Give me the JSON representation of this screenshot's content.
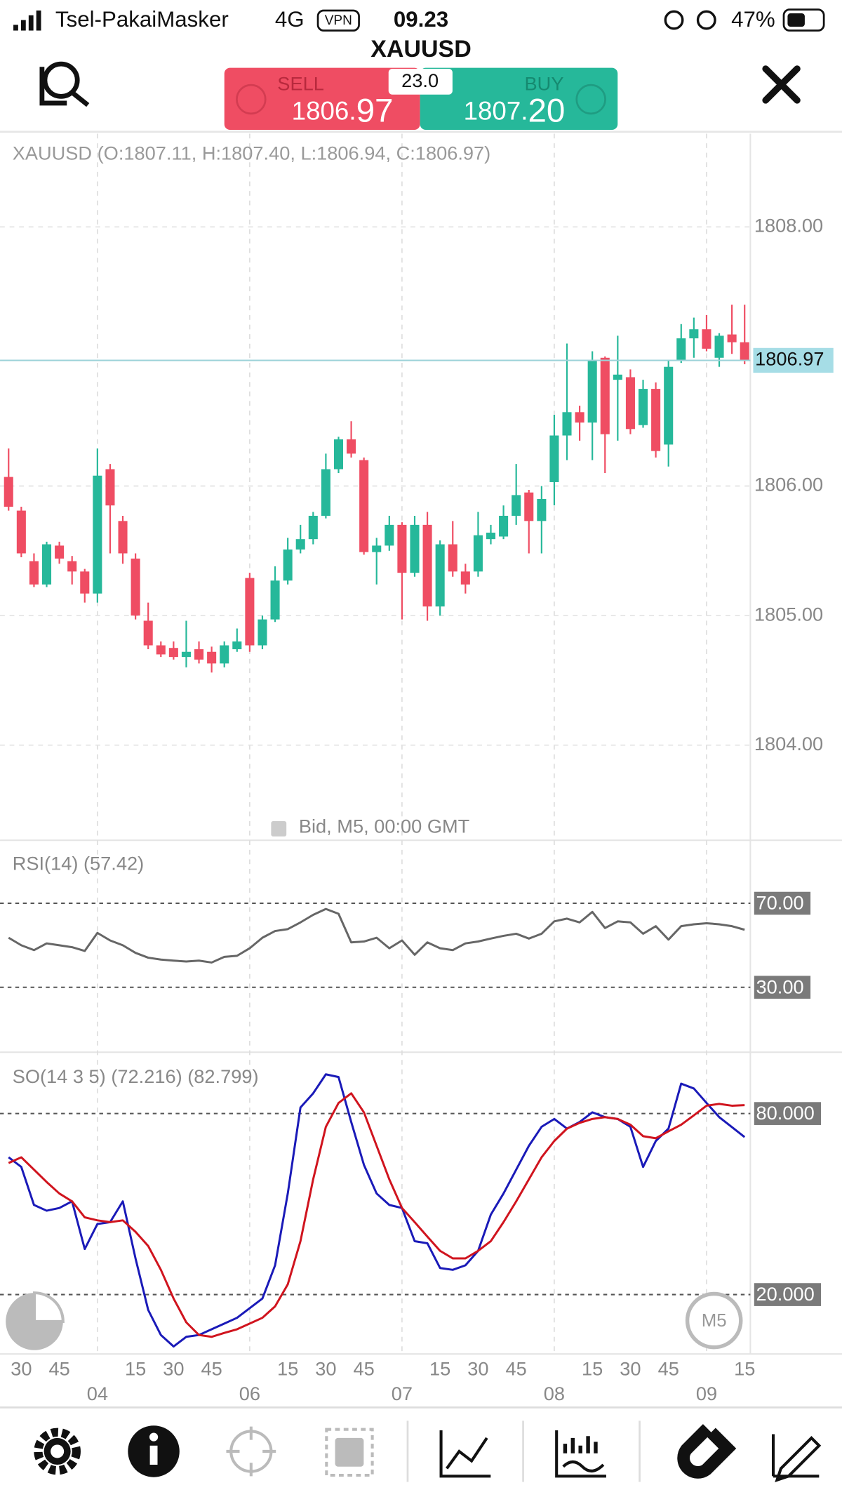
{
  "status_bar": {
    "carrier": "Tsel-PakaiMasker",
    "network": "4G",
    "vpn": "VPN",
    "time": "09.23",
    "battery": "47%"
  },
  "header": {
    "symbol": "XAUUSD",
    "sell_label": "SELL",
    "sell_price_main": "1806.",
    "sell_price_pips": "97",
    "buy_label": "BUY",
    "buy_price_main": "1807.",
    "buy_price_pips": "20",
    "spread": "23.0"
  },
  "price_chart": {
    "type": "candlestick",
    "info": "XAUUSD (O:1807.11, H:1807.40, L:1806.94, C:1806.97)",
    "footer": "Bid, M5, 00:00 GMT",
    "up_color": "#26b89a",
    "down_color": "#ef4d63",
    "ylim": [
      1803.28,
      1808.72
    ],
    "yticks": [
      {
        "value": 1804,
        "label": "1804.00"
      },
      {
        "value": 1805,
        "label": "1805.00"
      },
      {
        "value": 1806,
        "label": "1806.00"
      },
      {
        "value": 1808,
        "label": "1808.00"
      }
    ],
    "current_price": {
      "value": 1806.97,
      "label": "1806.97"
    },
    "candles": [
      {
        "open": 1806.07,
        "high": 1806.29,
        "low": 1805.81,
        "close": 1805.84
      },
      {
        "open": 1805.81,
        "high": 1805.84,
        "low": 1805.45,
        "close": 1805.48
      },
      {
        "open": 1805.42,
        "high": 1805.48,
        "low": 1805.22,
        "close": 1805.24
      },
      {
        "open": 1805.24,
        "high": 1805.57,
        "low": 1805.22,
        "close": 1805.55
      },
      {
        "open": 1805.54,
        "high": 1805.57,
        "low": 1805.4,
        "close": 1805.44
      },
      {
        "open": 1805.42,
        "high": 1805.46,
        "low": 1805.24,
        "close": 1805.34
      },
      {
        "open": 1805.34,
        "high": 1805.36,
        "low": 1805.1,
        "close": 1805.17
      },
      {
        "open": 1805.17,
        "high": 1806.29,
        "low": 1805.1,
        "close": 1806.08
      },
      {
        "open": 1806.13,
        "high": 1806.17,
        "low": 1805.48,
        "close": 1805.85
      },
      {
        "open": 1805.73,
        "high": 1805.77,
        "low": 1805.4,
        "close": 1805.48
      },
      {
        "open": 1805.44,
        "high": 1805.48,
        "low": 1804.97,
        "close": 1805.0
      },
      {
        "open": 1804.96,
        "high": 1805.1,
        "low": 1804.74,
        "close": 1804.77
      },
      {
        "open": 1804.77,
        "high": 1804.8,
        "low": 1804.68,
        "close": 1804.7
      },
      {
        "open": 1804.75,
        "high": 1804.8,
        "low": 1804.66,
        "close": 1804.68
      },
      {
        "open": 1804.68,
        "high": 1804.96,
        "low": 1804.6,
        "close": 1804.72
      },
      {
        "open": 1804.74,
        "high": 1804.8,
        "low": 1804.63,
        "close": 1804.66
      },
      {
        "open": 1804.72,
        "high": 1804.76,
        "low": 1804.56,
        "close": 1804.63
      },
      {
        "open": 1804.63,
        "high": 1804.8,
        "low": 1804.6,
        "close": 1804.77
      },
      {
        "open": 1804.74,
        "high": 1804.9,
        "low": 1804.72,
        "close": 1804.8
      },
      {
        "open": 1805.29,
        "high": 1805.33,
        "low": 1804.72,
        "close": 1804.77
      },
      {
        "open": 1804.77,
        "high": 1805.0,
        "low": 1804.74,
        "close": 1804.97
      },
      {
        "open": 1804.97,
        "high": 1805.38,
        "low": 1804.95,
        "close": 1805.27
      },
      {
        "open": 1805.27,
        "high": 1805.6,
        "low": 1805.24,
        "close": 1805.51
      },
      {
        "open": 1805.51,
        "high": 1805.7,
        "low": 1805.48,
        "close": 1805.59
      },
      {
        "open": 1805.59,
        "high": 1805.8,
        "low": 1805.55,
        "close": 1805.77
      },
      {
        "open": 1805.77,
        "high": 1806.25,
        "low": 1805.75,
        "close": 1806.13
      },
      {
        "open": 1806.13,
        "high": 1806.38,
        "low": 1806.1,
        "close": 1806.36
      },
      {
        "open": 1806.36,
        "high": 1806.5,
        "low": 1806.22,
        "close": 1806.25
      },
      {
        "open": 1806.2,
        "high": 1806.22,
        "low": 1805.47,
        "close": 1805.49
      },
      {
        "open": 1805.49,
        "high": 1805.6,
        "low": 1805.24,
        "close": 1805.54
      },
      {
        "open": 1805.54,
        "high": 1805.77,
        "low": 1805.5,
        "close": 1805.7
      },
      {
        "open": 1805.7,
        "high": 1805.72,
        "low": 1804.97,
        "close": 1805.33
      },
      {
        "open": 1805.33,
        "high": 1805.77,
        "low": 1805.3,
        "close": 1805.7
      },
      {
        "open": 1805.7,
        "high": 1805.8,
        "low": 1804.96,
        "close": 1805.07
      },
      {
        "open": 1805.07,
        "high": 1805.58,
        "low": 1805.0,
        "close": 1805.55
      },
      {
        "open": 1805.55,
        "high": 1805.73,
        "low": 1805.3,
        "close": 1805.34
      },
      {
        "open": 1805.34,
        "high": 1805.4,
        "low": 1805.17,
        "close": 1805.24
      },
      {
        "open": 1805.34,
        "high": 1805.8,
        "low": 1805.3,
        "close": 1805.62
      },
      {
        "open": 1805.59,
        "high": 1805.7,
        "low": 1805.55,
        "close": 1805.64
      },
      {
        "open": 1805.61,
        "high": 1805.85,
        "low": 1805.59,
        "close": 1805.77
      },
      {
        "open": 1805.77,
        "high": 1806.17,
        "low": 1805.7,
        "close": 1805.93
      },
      {
        "open": 1805.95,
        "high": 1805.97,
        "low": 1805.48,
        "close": 1805.73
      },
      {
        "open": 1805.73,
        "high": 1806.0,
        "low": 1805.48,
        "close": 1805.9
      },
      {
        "open": 1806.03,
        "high": 1806.55,
        "low": 1805.85,
        "close": 1806.39
      },
      {
        "open": 1806.39,
        "high": 1807.1,
        "low": 1806.2,
        "close": 1806.57
      },
      {
        "open": 1806.57,
        "high": 1806.62,
        "low": 1806.35,
        "close": 1806.49
      },
      {
        "open": 1806.49,
        "high": 1807.04,
        "low": 1806.2,
        "close": 1806.97
      },
      {
        "open": 1806.99,
        "high": 1807.0,
        "low": 1806.1,
        "close": 1806.4
      },
      {
        "open": 1806.82,
        "high": 1807.16,
        "low": 1806.35,
        "close": 1806.86
      },
      {
        "open": 1806.84,
        "high": 1806.9,
        "low": 1806.4,
        "close": 1806.44
      },
      {
        "open": 1806.47,
        "high": 1806.82,
        "low": 1806.45,
        "close": 1806.75
      },
      {
        "open": 1806.75,
        "high": 1806.8,
        "low": 1806.22,
        "close": 1806.27
      },
      {
        "open": 1806.32,
        "high": 1806.97,
        "low": 1806.15,
        "close": 1806.92
      },
      {
        "open": 1806.97,
        "high": 1807.25,
        "low": 1806.95,
        "close": 1807.14
      },
      {
        "open": 1807.14,
        "high": 1807.3,
        "low": 1806.99,
        "close": 1807.21
      },
      {
        "open": 1807.21,
        "high": 1807.32,
        "low": 1807.04,
        "close": 1807.06
      },
      {
        "open": 1806.99,
        "high": 1807.18,
        "low": 1806.92,
        "close": 1807.16
      },
      {
        "open": 1807.17,
        "high": 1807.4,
        "low": 1807.02,
        "close": 1807.11
      },
      {
        "open": 1807.11,
        "high": 1807.4,
        "low": 1806.94,
        "close": 1806.97
      }
    ],
    "times": [
      null,
      "30",
      null,
      null,
      "45",
      null,
      null,
      null,
      null,
      null,
      "15",
      null,
      null,
      "30",
      null,
      null,
      "45",
      null,
      null,
      null,
      null,
      null,
      "15",
      null,
      null,
      "30",
      null,
      null,
      "45",
      null,
      null,
      null,
      null,
      null,
      "15",
      null,
      null,
      "30",
      null,
      null,
      "45",
      null,
      null,
      null,
      null,
      null,
      "15",
      null,
      null,
      "30",
      null,
      null,
      "45",
      null,
      null,
      null,
      null,
      null,
      "15"
    ],
    "days": [
      null,
      null,
      null,
      null,
      null,
      null,
      null,
      "04",
      null,
      null,
      null,
      null,
      null,
      null,
      null,
      null,
      null,
      null,
      null,
      "06",
      null,
      null,
      null,
      null,
      null,
      null,
      null,
      null,
      null,
      null,
      null,
      "07",
      null,
      null,
      null,
      null,
      null,
      null,
      null,
      null,
      null,
      null,
      null,
      "08",
      null,
      null,
      null,
      null,
      null,
      null,
      null,
      null,
      null,
      null,
      null,
      "09",
      null,
      null,
      null
    ]
  },
  "rsi_panel": {
    "label": "RSI(14)",
    "value_label": "(57.42)",
    "color": "#666666",
    "ylim": [
      0,
      100
    ],
    "levels": [
      {
        "value": 70,
        "label": "70.00"
      },
      {
        "value": 30,
        "label": "30.00"
      }
    ],
    "values": [
      53.6,
      50.0,
      47.7,
      50.9,
      50.0,
      49.1,
      47.3,
      55.9,
      52.3,
      50.0,
      46.4,
      44.1,
      43.2,
      42.7,
      42.3,
      42.7,
      41.8,
      44.5,
      45.0,
      48.6,
      53.6,
      56.8,
      57.7,
      60.9,
      64.5,
      67.3,
      65.0,
      51.4,
      51.8,
      53.6,
      48.6,
      52.3,
      45.5,
      51.4,
      48.6,
      47.7,
      50.9,
      51.8,
      53.2,
      54.5,
      55.5,
      53.2,
      55.5,
      61.4,
      62.7,
      60.9,
      65.9,
      58.2,
      61.4,
      60.9,
      55.5,
      59.1,
      52.7,
      59.1,
      60.0,
      60.5,
      60.0,
      59.1,
      57.4
    ]
  },
  "so_panel": {
    "label": "SO(14 3 5)",
    "ylim": [
      0,
      100
    ],
    "levels": [
      {
        "value": 80,
        "label": "80.000"
      },
      {
        "value": 20,
        "label": "20.000"
      }
    ],
    "series": [
      {
        "value_label": "(72.216)",
        "color": "#1a1ab8",
        "values": [
          65.5,
          62.3,
          49.7,
          47.8,
          48.7,
          50.9,
          35.1,
          43.4,
          44.0,
          50.9,
          32.0,
          14.9,
          6.6,
          2.8,
          6.0,
          6.6,
          8.5,
          10.4,
          12.3,
          15.5,
          18.7,
          29.7,
          53.5,
          82.0,
          86.7,
          93.0,
          92.1,
          77.2,
          63.0,
          53.5,
          49.7,
          48.7,
          37.7,
          37.0,
          28.8,
          28.2,
          29.7,
          34.5,
          46.5,
          53.5,
          61.4,
          69.3,
          75.6,
          78.2,
          75.0,
          77.2,
          80.4,
          78.8,
          78.2,
          75.6,
          62.3,
          70.9,
          75.0,
          89.9,
          88.3,
          83.5,
          78.8,
          75.5,
          72.2
        ]
      },
      {
        "value_label": "(82.799)",
        "color": "#d0141e",
        "values": [
          63.6,
          65.5,
          61.4,
          57.3,
          53.5,
          50.9,
          45.6,
          44.6,
          44.0,
          44.6,
          40.8,
          36.1,
          28.2,
          18.7,
          10.8,
          6.6,
          6.0,
          7.3,
          8.5,
          10.4,
          12.3,
          16.1,
          23.4,
          37.7,
          58.2,
          75.6,
          83.5,
          86.7,
          80.4,
          69.3,
          58.2,
          48.7,
          44.0,
          39.2,
          34.5,
          32.0,
          32.0,
          34.5,
          37.7,
          44.0,
          50.9,
          58.2,
          65.5,
          70.9,
          75.0,
          76.9,
          78.2,
          78.8,
          78.2,
          76.3,
          72.5,
          71.8,
          74.1,
          76.3,
          79.4,
          82.6,
          83.2,
          82.6,
          82.8
        ]
      }
    ]
  },
  "timeframe_badge": "M5"
}
